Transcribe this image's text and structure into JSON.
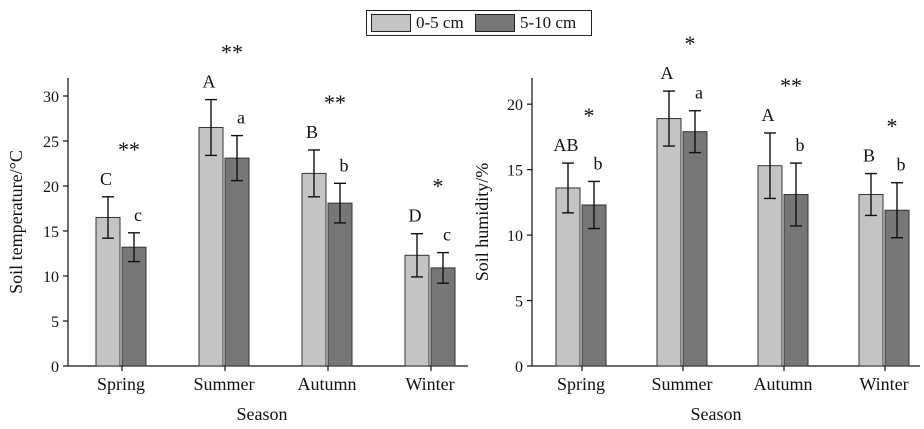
{
  "legend": {
    "items": [
      {
        "label": "0-5 cm",
        "color": "#c4c4c4"
      },
      {
        "label": "5-10 cm",
        "color": "#777777"
      }
    ]
  },
  "chart_data": [
    {
      "type": "bar",
      "categories": [
        "Spring",
        "Summer",
        "Autumn",
        "Winter"
      ],
      "xlabel": "Season",
      "ylabel": "Soil temperature/°C",
      "ylim": [
        0,
        32
      ],
      "yticks": [
        0,
        5,
        10,
        15,
        20,
        25,
        30
      ],
      "series": [
        {
          "name": "0-5 cm",
          "color": "#c4c4c4",
          "values": [
            16.5,
            26.5,
            21.4,
            12.3
          ],
          "errors": [
            2.3,
            3.1,
            2.6,
            2.4
          ],
          "letters": [
            "C",
            "A",
            "B",
            "D"
          ]
        },
        {
          "name": "5-10 cm",
          "color": "#777777",
          "values": [
            13.2,
            23.1,
            18.1,
            10.9
          ],
          "errors": [
            1.6,
            2.5,
            2.2,
            1.7
          ],
          "letters": [
            "c",
            "a",
            "b",
            "c"
          ]
        }
      ],
      "significance": [
        "**",
        "**",
        "**",
        "*"
      ]
    },
    {
      "type": "bar",
      "categories": [
        "Spring",
        "Summer",
        "Autumn",
        "Winter"
      ],
      "xlabel": "Season",
      "ylabel": "Soil humidity/%",
      "ylim": [
        0,
        22
      ],
      "yticks": [
        0,
        5,
        10,
        15,
        20
      ],
      "series": [
        {
          "name": "0-5 cm",
          "color": "#c4c4c4",
          "values": [
            13.6,
            18.9,
            15.3,
            13.1
          ],
          "errors": [
            1.9,
            2.1,
            2.5,
            1.6
          ],
          "letters": [
            "AB",
            "A",
            "A",
            "B"
          ]
        },
        {
          "name": "5-10 cm",
          "color": "#777777",
          "values": [
            12.3,
            17.9,
            13.1,
            11.9
          ],
          "errors": [
            1.8,
            1.6,
            2.4,
            2.1
          ],
          "letters": [
            "b",
            "a",
            "b",
            "b"
          ]
        }
      ],
      "significance": [
        "*",
        "*",
        "**",
        "*"
      ]
    }
  ]
}
